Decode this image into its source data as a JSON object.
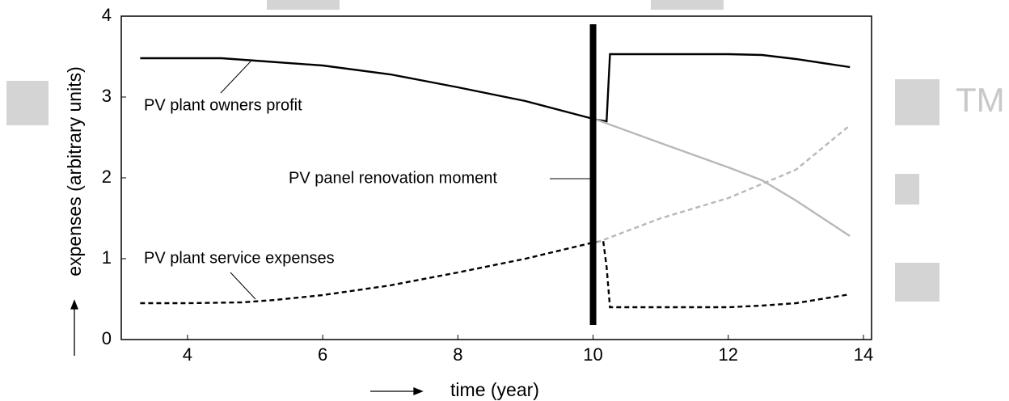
{
  "chart_data": {
    "type": "line",
    "xlabel": "time  (year)",
    "ylabel": "expenses  (arbitrary units)",
    "watermark": "TM",
    "xlim": [
      3.02,
      14.12
    ],
    "ylim": [
      0,
      4
    ],
    "xticks": [
      4,
      6,
      8,
      10,
      12,
      14
    ],
    "yticks": [
      0,
      1,
      2,
      3,
      4
    ],
    "series": [
      {
        "color": "#000000",
        "dash": false,
        "x": [
          3.3,
          4,
          4.5,
          5,
          6,
          7,
          8,
          9,
          10,
          10.05,
          10.2,
          10.25,
          11,
          12,
          12.5,
          13,
          13.8
        ],
        "values": [
          3.48,
          3.48,
          3.48,
          3.45,
          3.39,
          3.28,
          3.12,
          2.95,
          2.73,
          2.72,
          2.7,
          3.53,
          3.53,
          3.53,
          3.52,
          3.47,
          3.37
        ]
      },
      {
        "color": "#b8b8b8",
        "dash": false,
        "x": [
          10.05,
          11,
          12,
          12.5,
          13,
          13.8
        ],
        "values": [
          2.72,
          2.43,
          2.13,
          1.97,
          1.72,
          1.28
        ]
      },
      {
        "color": "#000000",
        "dash": true,
        "x": [
          3.3,
          4,
          4.8,
          5.3,
          6,
          7,
          8,
          9,
          10,
          10.15,
          10.2,
          10.25,
          11,
          12,
          12.5,
          13,
          13.8
        ],
        "values": [
          0.45,
          0.45,
          0.46,
          0.49,
          0.55,
          0.67,
          0.83,
          1.0,
          1.2,
          1.22,
          0.9,
          0.4,
          0.4,
          0.4,
          0.42,
          0.45,
          0.56
        ]
      },
      {
        "color": "#b8b8b8",
        "dash": true,
        "x": [
          10.05,
          11,
          12,
          13,
          13.8
        ],
        "values": [
          1.2,
          1.5,
          1.75,
          2.1,
          2.65
        ]
      }
    ],
    "renovation_line": {
      "x": 10,
      "y": [
        0.18,
        3.9
      ]
    },
    "annotations": [
      "PV plant owners profit",
      "PV panel renovation moment",
      "PV plant service expenses"
    ]
  }
}
